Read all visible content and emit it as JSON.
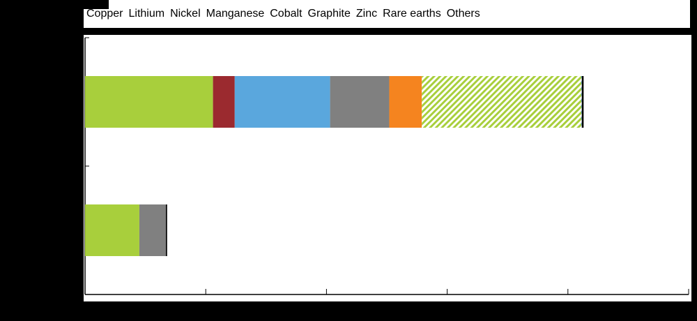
{
  "chart_data": {
    "type": "bar",
    "orientation": "horizontal",
    "stacked": true,
    "title": "",
    "xlabel": "",
    "ylabel": "",
    "categories": [
      "",
      ""
    ],
    "xlim": [
      0,
      50
    ],
    "grid": false,
    "legend_position": "top",
    "series": [
      {
        "name": "Copper",
        "color": "#a8cf3c",
        "pattern": "solid",
        "values": [
          10.6,
          4.5
        ]
      },
      {
        "name": "Lithium",
        "color": "#9b2a2f",
        "pattern": "solid",
        "values": [
          1.8,
          0
        ]
      },
      {
        "name": "Nickel",
        "color": "#5aa7dd",
        "pattern": "solid",
        "values": [
          7.9,
          0
        ]
      },
      {
        "name": "Manganese",
        "color": "#808080",
        "pattern": "solid",
        "values": [
          4.9,
          2.2
        ]
      },
      {
        "name": "Cobalt",
        "color": "#f5841f",
        "pattern": "solid",
        "values": [
          2.7,
          0
        ]
      },
      {
        "name": "Graphite",
        "color": "#a8cf3c",
        "pattern": "hatched",
        "values": [
          13.2,
          0
        ]
      },
      {
        "name": "Zinc",
        "color": "#9b2a2f",
        "pattern": "hatched",
        "values": [
          0,
          0
        ]
      },
      {
        "name": "Rare earths",
        "color": "#5aa7dd",
        "pattern": "hatched",
        "values": [
          0.05,
          0
        ]
      },
      {
        "name": "Others",
        "color": "#000000",
        "pattern": "solid",
        "values": [
          0.15,
          0.1
        ]
      }
    ]
  }
}
